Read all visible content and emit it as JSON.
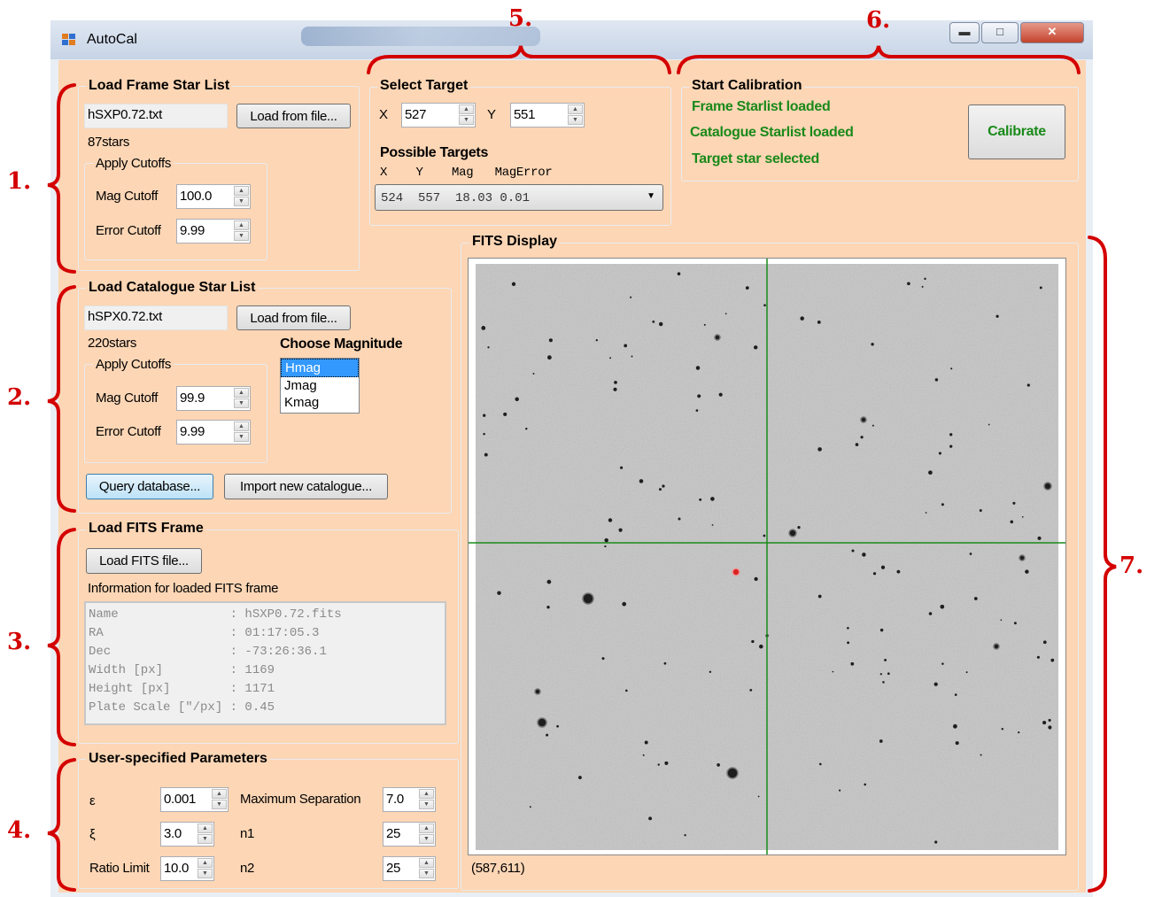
{
  "window": {
    "title": "AutoCal",
    "controls": [
      "minimize",
      "maximize",
      "close"
    ]
  },
  "load_frame": {
    "title": "Load Frame Star List",
    "filename": "hSXP0.72.txt",
    "load_button": "Load from file...",
    "star_count": "87stars",
    "cutoffs_title": "Apply Cutoffs",
    "mag_cutoff_label": "Mag Cutoff",
    "mag_cutoff_value": "100.0",
    "error_cutoff_label": "Error Cutoff",
    "error_cutoff_value": "9.99"
  },
  "load_catalogue": {
    "title": "Load Catalogue Star List",
    "filename": "hSPX0.72.txt",
    "load_button": "Load from file...",
    "star_count": "220stars",
    "cutoffs_title": "Apply Cutoffs",
    "mag_cutoff_label": "Mag Cutoff",
    "mag_cutoff_value": "99.9",
    "error_cutoff_label": "Error Cutoff",
    "error_cutoff_value": "9.99",
    "magnitude_title": "Choose Magnitude",
    "magnitudes": [
      "Hmag",
      "Jmag",
      "Kmag"
    ],
    "selected_magnitude": "Hmag",
    "query_button": "Query database...",
    "import_button": "Import new catalogue..."
  },
  "load_fits": {
    "title": "Load FITS Frame",
    "load_button": "Load FITS file...",
    "info_label": "Information for loaded FITS frame",
    "info": [
      "Name               : hSXP0.72.fits",
      "RA                 : 01:17:05.3",
      "Dec                : -73:26:36.1",
      "Width [px]         : 1169",
      "Height [px]        : 1171",
      "Plate Scale [\"/px] : 0.45"
    ]
  },
  "user_params": {
    "title": "User-specified Parameters",
    "epsilon_label": "ε",
    "epsilon_value": "0.001",
    "xi_label": "ξ",
    "xi_value": "3.0",
    "ratio_label": "Ratio Limit",
    "ratio_value": "10.0",
    "max_sep_label": "Maximum Separation",
    "max_sep_value": "7.0",
    "n1_label": "n1",
    "n1_value": "25",
    "n2_label": "n2",
    "n2_value": "25"
  },
  "select_target": {
    "title": "Select Target",
    "x_label": "X",
    "x_value": "527",
    "y_label": "Y",
    "y_value": "551",
    "possible_title": "Possible Targets",
    "columns_header": "X    Y    Mag   MagError",
    "selected_target": "524  557  18.03 0.01"
  },
  "calibration": {
    "title": "Start Calibration",
    "status_frame": "Frame Starlist loaded",
    "status_catalogue": "Catalogue Starlist loaded",
    "status_target": "Target star selected",
    "calibrate_button": "Calibrate",
    "status_color": "#1a8a1a"
  },
  "fits_display": {
    "title": "FITS Display",
    "coordinates": "(587,611)"
  },
  "annotations": [
    "1.",
    "2.",
    "3.",
    "4.",
    "5.",
    "6.",
    "7."
  ],
  "colors": {
    "panel": "#fcd6b5",
    "annotation": "#d40000",
    "crosshair": "#1a8a1a",
    "selection": "#3399ff"
  }
}
